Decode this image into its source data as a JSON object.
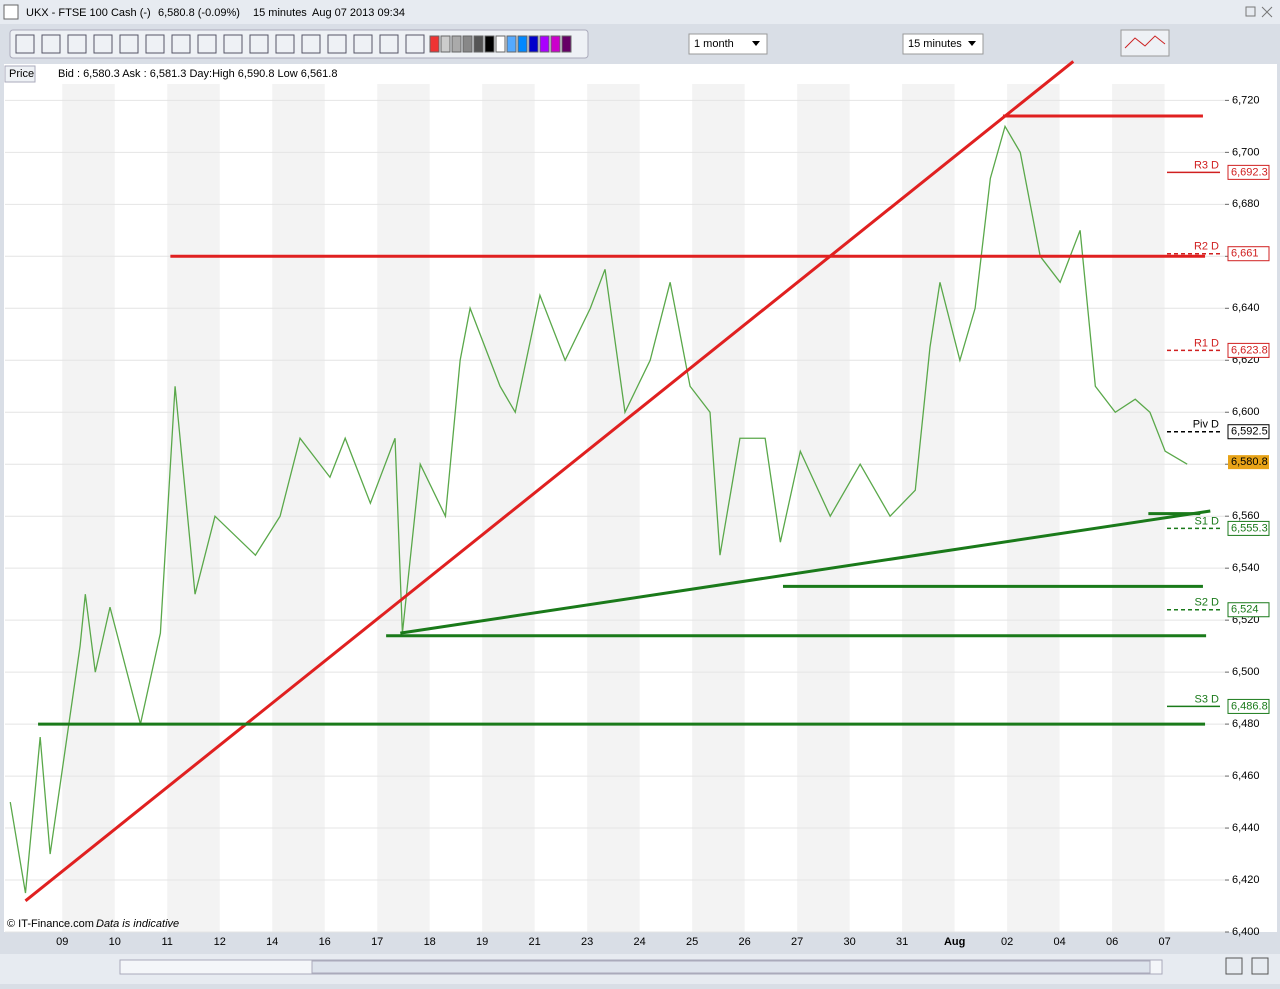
{
  "window": {
    "title": "UKX - FTSE 100 Cash (-)",
    "quote": "6,580.8 (-0.09%)",
    "interval": "15 minutes",
    "timestamp": "Aug 07 2013 09:34"
  },
  "toolbar": {
    "period": "1 month",
    "timeframe": "15 minutes"
  },
  "info": {
    "price_button": "Price",
    "quote_line": "Bid : 6,580.3 Ask : 6,581.3 Day:High 6,590.8 Low 6,561.8"
  },
  "footer": {
    "copyright": "© IT-Finance.com",
    "note": "Data is indicative"
  },
  "chart_data": {
    "type": "line",
    "categories": [
      "09",
      "10",
      "11",
      "12",
      "14",
      "16",
      "17",
      "18",
      "19",
      "21",
      "23",
      "24",
      "25",
      "26",
      "27",
      "30",
      "31",
      "Aug",
      "02",
      "04",
      "06",
      "07"
    ],
    "xlim": [
      -1.09,
      22.15
    ],
    "ylim": [
      6400,
      6734
    ],
    "yticks": [
      {
        "value": 6400,
        "label": "6,400"
      },
      {
        "value": 6420,
        "label": "6,420"
      },
      {
        "value": 6440,
        "label": "6,440"
      },
      {
        "value": 6460,
        "label": "6,460"
      },
      {
        "value": 6480,
        "label": "6,480"
      },
      {
        "value": 6500,
        "label": "6,500"
      },
      {
        "value": 6520,
        "label": "6,520"
      },
      {
        "value": 6540,
        "label": "6,540"
      },
      {
        "value": 6560,
        "label": "6,560"
      },
      {
        "value": 6580,
        "label": "6,580"
      },
      {
        "value": 6600,
        "label": "6,600"
      },
      {
        "value": 6620,
        "label": "6,620"
      },
      {
        "value": 6640,
        "label": "6,640"
      },
      {
        "value": 6660,
        "label": "6,660"
      },
      {
        "value": 6680,
        "label": "6,680"
      },
      {
        "value": 6700,
        "label": "6,700"
      },
      {
        "value": 6720,
        "label": "6,720"
      }
    ],
    "grid": true,
    "series": [
      {
        "color": "#5aa84a",
        "x": [
          -0.99,
          -0.7,
          -0.42,
          -0.23,
          0.34,
          0.44,
          0.63,
          0.91,
          1.49,
          1.87,
          2.15,
          2.53,
          2.91,
          3.68,
          4.15,
          4.53,
          5.1,
          5.39,
          5.87,
          6.34,
          6.48,
          6.82,
          7.3,
          7.58,
          7.77,
          8.34,
          8.63,
          9.1,
          9.58,
          10.06,
          10.34,
          10.72,
          11.2,
          11.58,
          11.96,
          12.34,
          12.53,
          12.91,
          13.39,
          13.68,
          14.06,
          14.63,
          15.2,
          15.77,
          16.25,
          16.53,
          16.72,
          17.1,
          17.39,
          17.68,
          17.96,
          18.25,
          18.63,
          19.01,
          19.39,
          19.68,
          20.06,
          20.44,
          20.72,
          21.01,
          21.43
        ],
        "values": [
          6450,
          6415,
          6475,
          6430,
          6510,
          6530,
          6500,
          6525,
          6480,
          6515,
          6610,
          6530,
          6560,
          6545,
          6560,
          6590,
          6575,
          6590,
          6565,
          6590,
          6515,
          6580,
          6560,
          6620,
          6640,
          6610,
          6600,
          6645,
          6620,
          6640,
          6655,
          6600,
          6620,
          6650,
          6610,
          6600,
          6545,
          6590,
          6590,
          6550,
          6585,
          6560,
          6580,
          6560,
          6570,
          6625,
          6650,
          6620,
          6640,
          6690,
          6710,
          6700,
          6660,
          6650,
          6670,
          6610,
          6600,
          6605,
          6600,
          6585,
          6580
        ]
      }
    ],
    "trendlines": [
      {
        "color": "#e02020",
        "x": [
          -0.7,
          19.26
        ],
        "values": [
          6412,
          6735
        ]
      },
      {
        "color": "#e02020",
        "x": [
          2.06,
          21.77
        ],
        "values": [
          6660,
          6660
        ]
      },
      {
        "color": "#e02020",
        "x": [
          17.92,
          21.73
        ],
        "values": [
          6714,
          6714
        ]
      },
      {
        "color": "#1a7a1a",
        "x": [
          6.44,
          21.87
        ],
        "values": [
          6515,
          6562
        ]
      },
      {
        "color": "#1a7a1a",
        "x": [
          6.17,
          21.79
        ],
        "values": [
          6514,
          6514
        ]
      },
      {
        "color": "#1a7a1a",
        "x": [
          13.73,
          21.73
        ],
        "values": [
          6533,
          6533
        ]
      },
      {
        "color": "#1a7a1a",
        "x": [
          -0.46,
          21.77
        ],
        "values": [
          6480,
          6480
        ]
      },
      {
        "color": "#1a7a1a",
        "x": [
          20.69,
          21.68
        ],
        "values": [
          6561,
          6561
        ]
      }
    ],
    "pivots": {
      "names": [
        "R3 D",
        "R2 D",
        "R1 D",
        "Piv D",
        "S1 D",
        "S2 D",
        "S3 D"
      ],
      "values": [
        6692.3,
        6661,
        6623.8,
        6592.5,
        6555.3,
        6524,
        6486.8
      ],
      "value_labels": [
        "6,692.3",
        "6,661",
        "6,623.8",
        "6,592.5",
        "6,555.3",
        "6,524",
        "6,486.8"
      ],
      "colors": [
        "#d02020",
        "#d02020",
        "#d02020",
        "#000000",
        "#1a7a1a",
        "#1a7a1a",
        "#1a7a1a"
      ]
    },
    "last_price": {
      "value": 6580.8,
      "label": "6,580.8",
      "color": "#e8a317"
    }
  }
}
